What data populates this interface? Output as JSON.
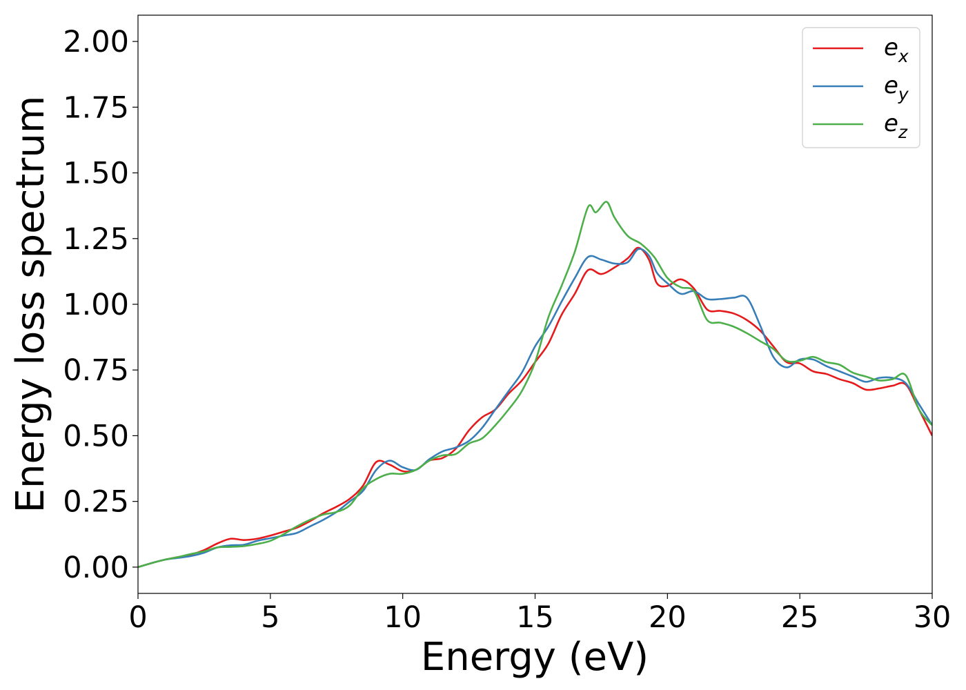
{
  "chart_data": {
    "type": "line",
    "title": "",
    "xlabel": "Energy (eV)",
    "ylabel": "Energy loss spectrum",
    "xlim": [
      0,
      30
    ],
    "ylim": [
      -0.1,
      2.1
    ],
    "xticks": [
      0,
      5,
      10,
      15,
      20,
      25,
      30
    ],
    "xtick_labels": [
      "0",
      "5",
      "10",
      "15",
      "20",
      "25",
      "30"
    ],
    "yticks": [
      0.0,
      0.25,
      0.5,
      0.75,
      1.0,
      1.25,
      1.5,
      1.75,
      2.0
    ],
    "ytick_labels": [
      "0.00",
      "0.25",
      "0.50",
      "0.75",
      "1.00",
      "1.25",
      "1.50",
      "1.75",
      "2.00"
    ],
    "grid": false,
    "legend_position": "top-right",
    "series": [
      {
        "name": "e_x",
        "label_base": "e",
        "label_sub": "x",
        "color": "#e41a1c",
        "x": [
          0,
          0.5,
          1,
          1.5,
          2,
          2.5,
          3,
          3.5,
          4,
          4.5,
          5,
          5.5,
          6,
          6.5,
          7,
          7.5,
          8,
          8.5,
          9,
          9.5,
          10,
          10.5,
          11,
          11.5,
          12,
          12.5,
          13,
          13.5,
          14,
          14.5,
          15,
          15.5,
          16,
          16.5,
          17,
          17.5,
          18,
          18.5,
          18.9,
          19.3,
          19.6,
          20,
          20.5,
          21,
          21.5,
          22,
          22.5,
          23,
          23.5,
          24,
          24.5,
          25,
          25.5,
          26,
          26.5,
          27,
          27.5,
          28,
          28.5,
          29,
          29.5,
          30
        ],
        "y": [
          0,
          0.015,
          0.028,
          0.038,
          0.048,
          0.065,
          0.09,
          0.108,
          0.103,
          0.108,
          0.12,
          0.135,
          0.15,
          0.175,
          0.205,
          0.23,
          0.26,
          0.31,
          0.4,
          0.39,
          0.365,
          0.37,
          0.405,
          0.415,
          0.45,
          0.52,
          0.57,
          0.6,
          0.66,
          0.71,
          0.78,
          0.85,
          0.96,
          1.04,
          1.13,
          1.115,
          1.14,
          1.175,
          1.215,
          1.17,
          1.08,
          1.07,
          1.095,
          1.06,
          0.98,
          0.975,
          0.965,
          0.94,
          0.9,
          0.84,
          0.78,
          0.775,
          0.745,
          0.735,
          0.715,
          0.7,
          0.675,
          0.68,
          0.69,
          0.695,
          0.6,
          0.5
        ]
      },
      {
        "name": "e_y",
        "label_base": "e",
        "label_sub": "y",
        "color": "#377eb8",
        "x": [
          0,
          0.5,
          1,
          1.5,
          2,
          2.5,
          3,
          3.5,
          4,
          4.5,
          5,
          5.5,
          6,
          6.5,
          7,
          7.5,
          8,
          8.5,
          9,
          9.5,
          10,
          10.5,
          11,
          11.5,
          12,
          12.5,
          13,
          13.5,
          14,
          14.5,
          15,
          15.5,
          16,
          16.5,
          17,
          17.5,
          18,
          18.5,
          18.9,
          19.3,
          19.6,
          20,
          20.5,
          21,
          21.5,
          22,
          22.5,
          23,
          23.5,
          24,
          24.5,
          25,
          25.5,
          26,
          26.5,
          27,
          27.5,
          28,
          28.5,
          29,
          29.5,
          30
        ],
        "y": [
          0,
          0.015,
          0.028,
          0.035,
          0.042,
          0.055,
          0.075,
          0.083,
          0.085,
          0.1,
          0.11,
          0.12,
          0.13,
          0.155,
          0.18,
          0.21,
          0.25,
          0.29,
          0.37,
          0.405,
          0.38,
          0.37,
          0.41,
          0.44,
          0.455,
          0.48,
          0.53,
          0.6,
          0.67,
          0.74,
          0.84,
          0.915,
          1.01,
          1.1,
          1.18,
          1.17,
          1.155,
          1.16,
          1.21,
          1.185,
          1.12,
          1.08,
          1.04,
          1.05,
          1.02,
          1.02,
          1.025,
          1.025,
          0.92,
          0.8,
          0.76,
          0.79,
          0.79,
          0.765,
          0.745,
          0.725,
          0.705,
          0.72,
          0.72,
          0.7,
          0.62,
          0.54
        ]
      },
      {
        "name": "e_z",
        "label_base": "e",
        "label_sub": "z",
        "color": "#4daf4a",
        "x": [
          0,
          0.5,
          1,
          1.5,
          2,
          2.5,
          3,
          3.5,
          4,
          4.5,
          5,
          5.5,
          6,
          6.5,
          7,
          7.5,
          8,
          8.5,
          9,
          9.5,
          10,
          10.5,
          11,
          11.5,
          12,
          12.5,
          13,
          13.5,
          14,
          14.5,
          15,
          15.5,
          16,
          16.5,
          17,
          17.3,
          17.7,
          18,
          18.5,
          19,
          19.5,
          20,
          20.5,
          21,
          21.5,
          22,
          22.5,
          23,
          23.5,
          24,
          24.5,
          25,
          25.5,
          26,
          26.5,
          27,
          27.5,
          28,
          28.5,
          29,
          29.5,
          30
        ],
        "y": [
          0,
          0.015,
          0.028,
          0.038,
          0.05,
          0.06,
          0.075,
          0.077,
          0.08,
          0.088,
          0.1,
          0.125,
          0.155,
          0.18,
          0.2,
          0.21,
          0.235,
          0.3,
          0.335,
          0.355,
          0.355,
          0.37,
          0.405,
          0.425,
          0.43,
          0.47,
          0.49,
          0.54,
          0.6,
          0.67,
          0.78,
          0.95,
          1.07,
          1.2,
          1.37,
          1.35,
          1.39,
          1.33,
          1.26,
          1.23,
          1.18,
          1.1,
          1.065,
          1.05,
          0.94,
          0.93,
          0.915,
          0.89,
          0.86,
          0.83,
          0.785,
          0.785,
          0.8,
          0.78,
          0.77,
          0.74,
          0.725,
          0.71,
          0.715,
          0.73,
          0.6,
          0.54
        ]
      }
    ]
  }
}
